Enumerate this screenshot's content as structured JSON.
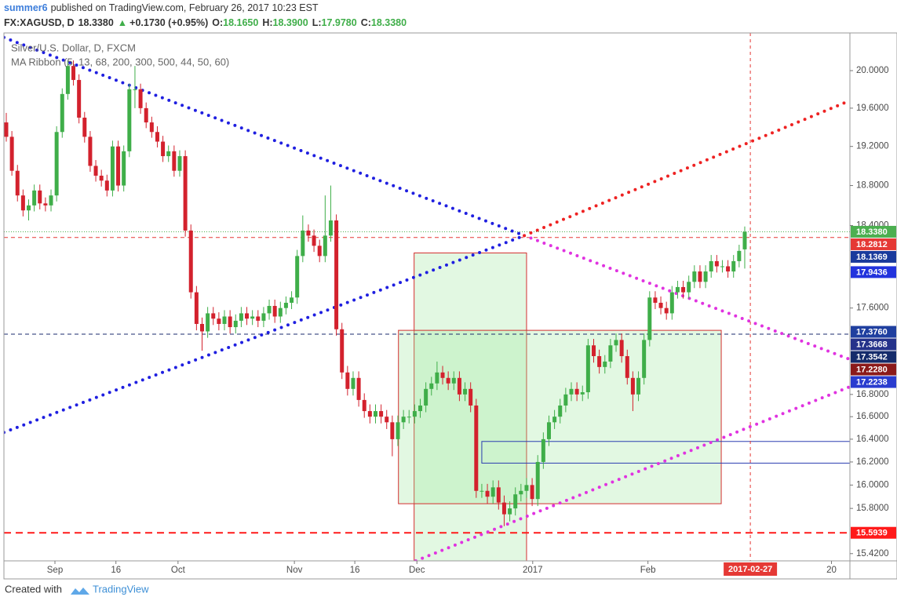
{
  "header": {
    "author": "summer6",
    "published": "published on TradingView.com, February 26, 2017 10:23 EST",
    "symbol": "FX:XAGUSD, D",
    "last": "18.3380",
    "arrow": "▲",
    "change": "+0.1730 (+0.95%)",
    "o_key": "O:",
    "o_val": "18.1650",
    "h_key": "H:",
    "h_val": "18.3900",
    "l_key": "L:",
    "l_val": "17.9780",
    "c_key": "C:",
    "c_val": "18.3380"
  },
  "footer": {
    "created": "Created with",
    "brand": "TradingView"
  },
  "chart_data": {
    "type": "candlestick",
    "title": "Silver/U.S. Dollar, D, FXCM",
    "subtitle": "MA Ribbon (5, 13, 68, 200, 300, 500, 44, 50, 60)",
    "up_color": "#3fae49",
    "down_color": "#d3212d",
    "log_scale": true,
    "xlim": [
      -0.42,
      150.8
    ],
    "xticks": [
      {
        "value": 8.7,
        "label": "Sep"
      },
      {
        "value": 19.6,
        "label": "16"
      },
      {
        "value": 30.7,
        "label": "Oct"
      },
      {
        "value": 51.5,
        "label": "Nov"
      },
      {
        "value": 62.3,
        "label": "16"
      },
      {
        "value": 73.4,
        "label": "Dec"
      },
      {
        "value": 94.1,
        "label": "2017"
      },
      {
        "value": 114.7,
        "label": "Feb"
      },
      {
        "value": 147.5,
        "label": "20"
      }
    ],
    "ylim": [
      15.36,
      20.41
    ],
    "yticks": [
      {
        "value": 20,
        "label": "20.0000"
      },
      {
        "value": 19.6,
        "label": "19.6000"
      },
      {
        "value": 19.2,
        "label": "19.2000"
      },
      {
        "value": 18.8,
        "label": "18.8000"
      },
      {
        "value": 18.4,
        "label": "18.4000"
      },
      {
        "value": 17.6,
        "label": "17.6000"
      },
      {
        "value": 16.8,
        "label": "16.8000"
      },
      {
        "value": 16.6,
        "label": "16.6000"
      },
      {
        "value": 16.4,
        "label": "16.4000"
      },
      {
        "value": 16.2,
        "label": "16.2000"
      },
      {
        "value": 16,
        "label": "16.0000"
      },
      {
        "value": 15.8,
        "label": "15.8000"
      },
      {
        "value": 15.42,
        "label": "15.4200"
      }
    ],
    "candles": [
      [
        19.45,
        19.55,
        19.25,
        19.3
      ],
      [
        19.3,
        19.36,
        18.9,
        18.95
      ],
      [
        18.95,
        19.01,
        18.64,
        18.7
      ],
      [
        18.7,
        18.76,
        18.49,
        18.55
      ],
      [
        18.55,
        18.66,
        18.45,
        18.6
      ],
      [
        18.6,
        18.81,
        18.54,
        18.75
      ],
      [
        18.75,
        18.81,
        18.56,
        18.62
      ],
      [
        18.62,
        18.68,
        18.54,
        18.6
      ],
      [
        18.6,
        18.76,
        18.54,
        18.7
      ],
      [
        18.7,
        19.41,
        18.64,
        19.35
      ],
      [
        19.35,
        19.81,
        19.29,
        19.75
      ],
      [
        19.75,
        20.11,
        19.69,
        20.05
      ],
      [
        20.05,
        20.11,
        19.84,
        19.9
      ],
      [
        19.9,
        19.96,
        19.44,
        19.5
      ],
      [
        19.5,
        19.56,
        19.24,
        19.3
      ],
      [
        19.3,
        19.36,
        18.94,
        19.0
      ],
      [
        19.0,
        19.06,
        18.84,
        18.9
      ],
      [
        18.9,
        18.96,
        18.79,
        18.85
      ],
      [
        18.85,
        18.91,
        18.69,
        18.75
      ],
      [
        18.75,
        19.26,
        18.69,
        19.2
      ],
      [
        19.2,
        19.26,
        18.74,
        18.8
      ],
      [
        18.8,
        19.21,
        18.74,
        19.15
      ],
      [
        19.15,
        19.86,
        19.09,
        19.8
      ],
      [
        19.8,
        20.05,
        19.6,
        19.8
      ],
      [
        19.8,
        19.86,
        19.54,
        19.6
      ],
      [
        19.6,
        19.66,
        19.39,
        19.45
      ],
      [
        19.45,
        19.51,
        19.29,
        19.35
      ],
      [
        19.35,
        19.41,
        19.19,
        19.25
      ],
      [
        19.25,
        19.31,
        19.04,
        19.1
      ],
      [
        19.1,
        19.21,
        19.04,
        19.15
      ],
      [
        19.15,
        19.21,
        18.89,
        18.95
      ],
      [
        18.95,
        19.16,
        18.89,
        19.1
      ],
      [
        19.1,
        19.16,
        18.29,
        18.35
      ],
      [
        18.35,
        18.41,
        17.69,
        17.75
      ],
      [
        17.75,
        17.81,
        17.39,
        17.45
      ],
      [
        17.45,
        17.51,
        17.2,
        17.38
      ],
      [
        17.38,
        17.61,
        17.32,
        17.55
      ],
      [
        17.55,
        17.61,
        17.44,
        17.5
      ],
      [
        17.5,
        17.56,
        17.39,
        17.45
      ],
      [
        17.45,
        17.58,
        17.39,
        17.52
      ],
      [
        17.52,
        17.58,
        17.36,
        17.42
      ],
      [
        17.42,
        17.54,
        17.36,
        17.48
      ],
      [
        17.48,
        17.61,
        17.42,
        17.55
      ],
      [
        17.55,
        17.61,
        17.44,
        17.5
      ],
      [
        17.5,
        17.58,
        17.44,
        17.52
      ],
      [
        17.52,
        17.58,
        17.42,
        17.48
      ],
      [
        17.48,
        17.61,
        17.42,
        17.55
      ],
      [
        17.55,
        17.68,
        17.49,
        17.62
      ],
      [
        17.62,
        17.68,
        17.46,
        17.52
      ],
      [
        17.52,
        17.66,
        17.46,
        17.6
      ],
      [
        17.6,
        17.71,
        17.54,
        17.65
      ],
      [
        17.65,
        17.76,
        17.59,
        17.7
      ],
      [
        17.7,
        18.16,
        17.64,
        18.1
      ],
      [
        18.1,
        18.5,
        18.04,
        18.35
      ],
      [
        18.35,
        18.41,
        18.24,
        18.3
      ],
      [
        18.3,
        18.36,
        18.14,
        18.2
      ],
      [
        18.2,
        18.26,
        18.04,
        18.1
      ],
      [
        18.1,
        18.7,
        18.04,
        18.3
      ],
      [
        18.3,
        18.8,
        18.24,
        18.45
      ],
      [
        18.45,
        18.51,
        17.34,
        17.4
      ],
      [
        17.4,
        17.46,
        16.94,
        17.0
      ],
      [
        17.0,
        17.06,
        16.79,
        16.85
      ],
      [
        16.85,
        17.01,
        16.79,
        16.95
      ],
      [
        16.95,
        17.01,
        16.69,
        16.75
      ],
      [
        16.75,
        16.81,
        16.59,
        16.65
      ],
      [
        16.65,
        16.71,
        16.54,
        16.6
      ],
      [
        16.6,
        16.71,
        16.54,
        16.65
      ],
      [
        16.65,
        16.71,
        16.54,
        16.6
      ],
      [
        16.6,
        16.66,
        16.49,
        16.55
      ],
      [
        16.55,
        16.61,
        16.25,
        16.4
      ],
      [
        16.4,
        16.61,
        16.34,
        16.55
      ],
      [
        16.55,
        16.66,
        16.49,
        16.6
      ],
      [
        16.6,
        16.66,
        16.54,
        16.6
      ],
      [
        16.6,
        16.71,
        16.54,
        16.65
      ],
      [
        16.65,
        16.76,
        16.59,
        16.7
      ],
      [
        16.7,
        16.91,
        16.64,
        16.85
      ],
      [
        16.85,
        16.96,
        16.79,
        16.9
      ],
      [
        16.9,
        17.1,
        16.84,
        17.0
      ],
      [
        17.0,
        17.06,
        16.89,
        16.95
      ],
      [
        16.95,
        17.01,
        16.84,
        16.9
      ],
      [
        16.9,
        17.01,
        16.84,
        16.95
      ],
      [
        16.95,
        17.01,
        16.74,
        16.8
      ],
      [
        16.8,
        16.91,
        16.74,
        16.85
      ],
      [
        16.85,
        16.91,
        16.64,
        16.7
      ],
      [
        16.7,
        16.76,
        15.89,
        15.95
      ],
      [
        15.95,
        16.01,
        15.89,
        15.95
      ],
      [
        15.95,
        16.01,
        15.84,
        15.9
      ],
      [
        15.9,
        16.04,
        15.84,
        15.98
      ],
      [
        15.98,
        16.04,
        15.79,
        15.85
      ],
      [
        15.85,
        15.91,
        15.65,
        15.75
      ],
      [
        15.75,
        15.86,
        15.69,
        15.8
      ],
      [
        15.8,
        15.98,
        15.74,
        15.92
      ],
      [
        15.92,
        16.01,
        15.86,
        15.95
      ],
      [
        15.95,
        16.06,
        15.89,
        16.0
      ],
      [
        16.0,
        16.06,
        15.82,
        15.88
      ],
      [
        15.88,
        16.26,
        15.82,
        16.2
      ],
      [
        16.2,
        16.46,
        16.14,
        16.4
      ],
      [
        16.4,
        16.61,
        16.34,
        16.55
      ],
      [
        16.55,
        16.66,
        16.49,
        16.6
      ],
      [
        16.6,
        16.76,
        16.54,
        16.7
      ],
      [
        16.7,
        16.86,
        16.64,
        16.8
      ],
      [
        16.8,
        16.91,
        16.74,
        16.85
      ],
      [
        16.85,
        16.91,
        16.74,
        16.8
      ],
      [
        16.8,
        16.88,
        16.74,
        16.82
      ],
      [
        16.82,
        17.31,
        16.76,
        17.25
      ],
      [
        17.25,
        17.31,
        17.09,
        17.15
      ],
      [
        17.15,
        17.21,
        16.99,
        17.05
      ],
      [
        17.05,
        17.16,
        16.99,
        17.1
      ],
      [
        17.1,
        17.31,
        17.04,
        17.25
      ],
      [
        17.25,
        17.36,
        17.19,
        17.3
      ],
      [
        17.3,
        17.36,
        17.09,
        17.15
      ],
      [
        17.15,
        17.21,
        16.89,
        16.95
      ],
      [
        16.95,
        17.01,
        16.65,
        16.8
      ],
      [
        16.8,
        17.01,
        16.74,
        16.95
      ],
      [
        16.95,
        17.36,
        16.89,
        17.3
      ],
      [
        17.3,
        17.76,
        17.24,
        17.7
      ],
      [
        17.7,
        17.76,
        17.59,
        17.65
      ],
      [
        17.65,
        17.71,
        17.54,
        17.6
      ],
      [
        17.6,
        17.66,
        17.49,
        17.55
      ],
      [
        17.55,
        17.81,
        17.49,
        17.75
      ],
      [
        17.75,
        17.86,
        17.69,
        17.8
      ],
      [
        17.8,
        17.86,
        17.69,
        17.75
      ],
      [
        17.75,
        17.91,
        17.69,
        17.85
      ],
      [
        17.85,
        18.01,
        17.79,
        17.95
      ],
      [
        17.95,
        18.01,
        17.79,
        17.85
      ],
      [
        17.85,
        18.01,
        17.79,
        17.95
      ],
      [
        17.95,
        18.11,
        17.89,
        18.05
      ],
      [
        18.05,
        18.11,
        17.94,
        18.0
      ],
      [
        18.0,
        18.06,
        17.94,
        18.0
      ],
      [
        18.0,
        18.06,
        17.89,
        17.95
      ],
      [
        17.95,
        18.11,
        17.89,
        18.05
      ],
      [
        18.05,
        18.21,
        17.99,
        18.15
      ],
      [
        18.165,
        18.39,
        17.978,
        18.338
      ]
    ],
    "hlines": [
      {
        "value": 18.338,
        "color": "#4caf50",
        "style": "dotted"
      },
      {
        "value": 18.2812,
        "color": "#e53935",
        "style": "dashed"
      },
      {
        "value": 17.3542,
        "color": "#1a2a6c",
        "style": "dashed"
      },
      {
        "value": 15.5939,
        "color": "#ff1a1a",
        "style": "dashed-thick"
      }
    ],
    "trendlines": [
      {
        "points": [
          [
            -0.42,
            20.36
          ],
          [
            92.6,
            18.3
          ]
        ],
        "color": "#1f1fe0"
      },
      {
        "points": [
          [
            -0.42,
            16.46
          ],
          [
            92.6,
            18.3
          ]
        ],
        "color": "#1f1fe0"
      },
      {
        "points": [
          [
            92.6,
            18.3
          ],
          [
            150.8,
            17.12
          ]
        ],
        "color": "#e033e0"
      },
      {
        "points": [
          [
            92.6,
            18.3
          ],
          [
            150.4,
            19.67
          ]
        ],
        "color": "#ee2222"
      },
      {
        "points": [
          [
            73.2,
            15.36
          ],
          [
            150.8,
            16.87
          ]
        ],
        "color": "#e033e0"
      }
    ],
    "rectangles": [
      {
        "x": [
          72.9,
          93
        ],
        "y": [
          15.36,
          18.13
        ],
        "color": "#d32f2f",
        "fill": "rgba(150,230,150,0.28)"
      },
      {
        "x": [
          70.1,
          127.8
        ],
        "y": [
          15.84,
          17.39
        ],
        "color": "#d32f2f",
        "fill": "rgba(150,230,150,0.28)"
      },
      {
        "x": [
          85,
          150.8
        ],
        "y": [
          16.19,
          16.38
        ],
        "color": "#2a3cb0",
        "fill": "none"
      }
    ],
    "x_marker": {
      "value": 133,
      "label": "2017-02-27",
      "color": "#e53935"
    },
    "price_labels": [
      {
        "value": 18.338,
        "label": "18.3380",
        "color": "#4caf50"
      },
      {
        "value": 18.2812,
        "label": "18.2812",
        "color": "#e53935"
      },
      {
        "value": 18.1369,
        "label": "18.1369",
        "color": "#1a3a9c"
      },
      {
        "value": 17.9436,
        "label": "17.9436",
        "color": "#2233dd"
      },
      {
        "value": 17.376,
        "label": "17.3760",
        "color": "#1f3f9f"
      },
      {
        "value": 17.3668,
        "label": "17.3668",
        "color": "#25328a"
      },
      {
        "value": 17.3542,
        "label": "17.3542",
        "color": "#152c6b"
      },
      {
        "value": 17.228,
        "label": "17.2280",
        "color": "#8b1a1a"
      },
      {
        "value": 17.2238,
        "label": "17.2238",
        "color": "#2a3ccf"
      },
      {
        "value": 15.5939,
        "label": "15.5939",
        "color": "#ff1a1a"
      }
    ]
  }
}
